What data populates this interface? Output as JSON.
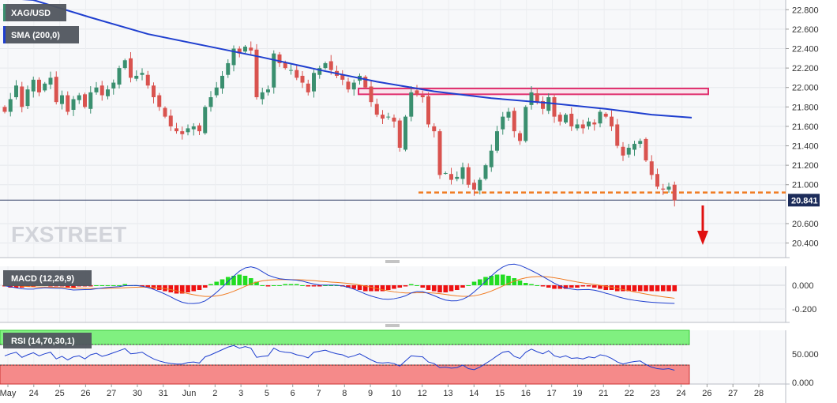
{
  "chart_data": [
    {
      "type": "candlestick",
      "title": "XAG/USD",
      "indicator": "SMA (200,0)",
      "last_price": "20.841",
      "y_ticks": [
        "22.800",
        "22.600",
        "22.400",
        "22.200",
        "22.000",
        "21.800",
        "21.600",
        "21.400",
        "21.200",
        "21.000",
        "20.600",
        "20.400"
      ],
      "ylim": [
        20.25,
        22.9
      ],
      "x_tick_labels": [
        "May",
        "24",
        "25",
        "26",
        "27",
        "30",
        "31",
        "Jun",
        "2",
        "3",
        "5",
        "6",
        "7",
        "8",
        "9",
        "10",
        "12",
        "13",
        "14",
        "15",
        "16",
        "17",
        "19",
        "21",
        "22",
        "23",
        "24",
        "26",
        "27",
        "28"
      ],
      "resistance_zone": [
        21.93,
        21.99
      ],
      "support_level": 20.92,
      "close": [
        21.75,
        21.88,
        22.02,
        21.8,
        21.98,
        22.08,
        21.95,
        22.04,
        22.1,
        21.85,
        21.92,
        21.75,
        21.88,
        21.92,
        21.8,
        21.95,
        22.0,
        21.92,
        21.98,
        22.05,
        22.2,
        22.28,
        22.1,
        22.12,
        22.15,
        22.02,
        21.9,
        21.8,
        21.7,
        21.6,
        21.55,
        21.52,
        21.58,
        21.6,
        21.55,
        21.8,
        21.9,
        22.0,
        22.12,
        22.25,
        22.4,
        22.35,
        22.42,
        22.38,
        21.9,
        21.95,
        21.98,
        22.35,
        22.25,
        22.2,
        22.18,
        22.1,
        22.05,
        21.95,
        22.15,
        22.2,
        22.25,
        22.18,
        22.12,
        22.08,
        21.98,
        22.05,
        22.12,
        22.0,
        21.85,
        21.72,
        21.68,
        21.7,
        21.65,
        21.38,
        21.7,
        21.95,
        21.93,
        21.9,
        21.62,
        21.55,
        21.1,
        21.12,
        21.05,
        21.08,
        21.18,
        21.0,
        20.95,
        21.05,
        21.2,
        21.35,
        21.55,
        21.7,
        21.75,
        21.55,
        21.45,
        21.8,
        21.95,
        21.85,
        21.78,
        21.9,
        21.7,
        21.65,
        21.72,
        21.6,
        21.62,
        21.58,
        21.65,
        21.62,
        21.75,
        21.7,
        21.6,
        21.4,
        21.3,
        21.38,
        21.42,
        21.45,
        21.25,
        21.1,
        20.98,
        20.95,
        20.98,
        20.84
      ],
      "open_shift": 1,
      "sma": [
        [
          0,
          22.92
        ],
        [
          5,
          22.9
        ],
        [
          15,
          22.72
        ],
        [
          25,
          22.55
        ],
        [
          35,
          22.43
        ],
        [
          45,
          22.31
        ],
        [
          55,
          22.18
        ],
        [
          65,
          22.06
        ],
        [
          75,
          21.96
        ],
        [
          85,
          21.89
        ],
        [
          95,
          21.84
        ],
        [
          105,
          21.78
        ],
        [
          113,
          21.72
        ],
        [
          120,
          21.69
        ]
      ],
      "macd_ticks": [
        "0.000",
        "-0.200"
      ],
      "macd_label": "MACD (12,26,9)",
      "macd_hist": [
        -0.01,
        -0.02,
        -0.02,
        -0.02,
        -0.01,
        -0.01,
        0.0,
        0.0,
        -0.01,
        -0.01,
        -0.01,
        -0.02,
        -0.02,
        -0.01,
        -0.01,
        -0.01,
        0.0,
        0.0,
        0.0,
        0.0,
        0.0,
        0.01,
        0.0,
        0.0,
        -0.01,
        -0.02,
        -0.03,
        -0.04,
        -0.05,
        -0.06,
        -0.07,
        -0.07,
        -0.06,
        -0.05,
        -0.04,
        -0.02,
        0.01,
        0.03,
        0.05,
        0.07,
        0.08,
        0.09,
        0.08,
        0.06,
        0.03,
        0.0,
        -0.01,
        0.0,
        0.0,
        0.01,
        0.01,
        0.01,
        0.0,
        -0.01,
        -0.01,
        -0.01,
        0.0,
        0.0,
        0.0,
        -0.01,
        -0.02,
        -0.03,
        -0.04,
        -0.05,
        -0.05,
        -0.05,
        -0.05,
        -0.04,
        -0.03,
        -0.02,
        -0.01,
        0.01,
        0.0,
        -0.02,
        -0.04,
        -0.05,
        -0.06,
        -0.06,
        -0.05,
        -0.04,
        -0.02,
        0.0,
        0.03,
        0.05,
        0.07,
        0.08,
        0.09,
        0.09,
        0.08,
        0.06,
        0.04,
        0.02,
        0.01,
        0.0,
        -0.01,
        -0.02,
        -0.03,
        -0.03,
        -0.03,
        -0.02,
        -0.02,
        -0.01,
        -0.01,
        -0.02,
        -0.03,
        -0.04,
        -0.04,
        -0.05,
        -0.05,
        -0.05,
        -0.05,
        -0.05,
        -0.05,
        -0.05,
        -0.05,
        -0.05,
        -0.05,
        -0.05
      ],
      "rsi_ticks": [
        "50.000",
        "0.000"
      ],
      "rsi_label": "RSI (14,70,30,1)",
      "rsi": [
        48,
        52,
        55,
        45,
        50,
        54,
        48,
        52,
        55,
        42,
        47,
        40,
        46,
        48,
        42,
        50,
        53,
        47,
        50,
        54,
        58,
        62,
        52,
        53,
        55,
        48,
        42,
        38,
        35,
        33,
        32,
        32,
        35,
        36,
        34,
        46,
        50,
        55,
        60,
        65,
        68,
        63,
        66,
        63,
        45,
        47,
        48,
        63,
        57,
        55,
        54,
        50,
        48,
        44,
        55,
        57,
        59,
        55,
        52,
        50,
        45,
        48,
        52,
        46,
        40,
        35,
        34,
        35,
        33,
        28,
        38,
        48,
        47,
        46,
        36,
        33,
        25,
        26,
        24,
        25,
        30,
        23,
        21,
        26,
        33,
        40,
        48,
        55,
        57,
        47,
        43,
        55,
        61,
        56,
        52,
        58,
        48,
        45,
        48,
        43,
        44,
        42,
        46,
        44,
        50,
        48,
        43,
        36,
        32,
        35,
        37,
        38,
        31,
        26,
        23,
        22,
        23,
        20
      ],
      "rsi_ylim": [
        0,
        100
      ]
    }
  ],
  "colors": {
    "up": "#3a8f6f",
    "down": "#d9534f",
    "sma": "#1f3fcf",
    "macd_pos": "#22dd22",
    "macd_neg": "#ee1111",
    "macd_line": "#1f3fcf",
    "signal_line": "#f07b22",
    "rsi_line": "#1f3fcf",
    "support": "#f07b22",
    "resistance": "#e0306e",
    "arrow": "#e01010"
  },
  "watermark": "FXSTREET",
  "forecast_direction": "down"
}
